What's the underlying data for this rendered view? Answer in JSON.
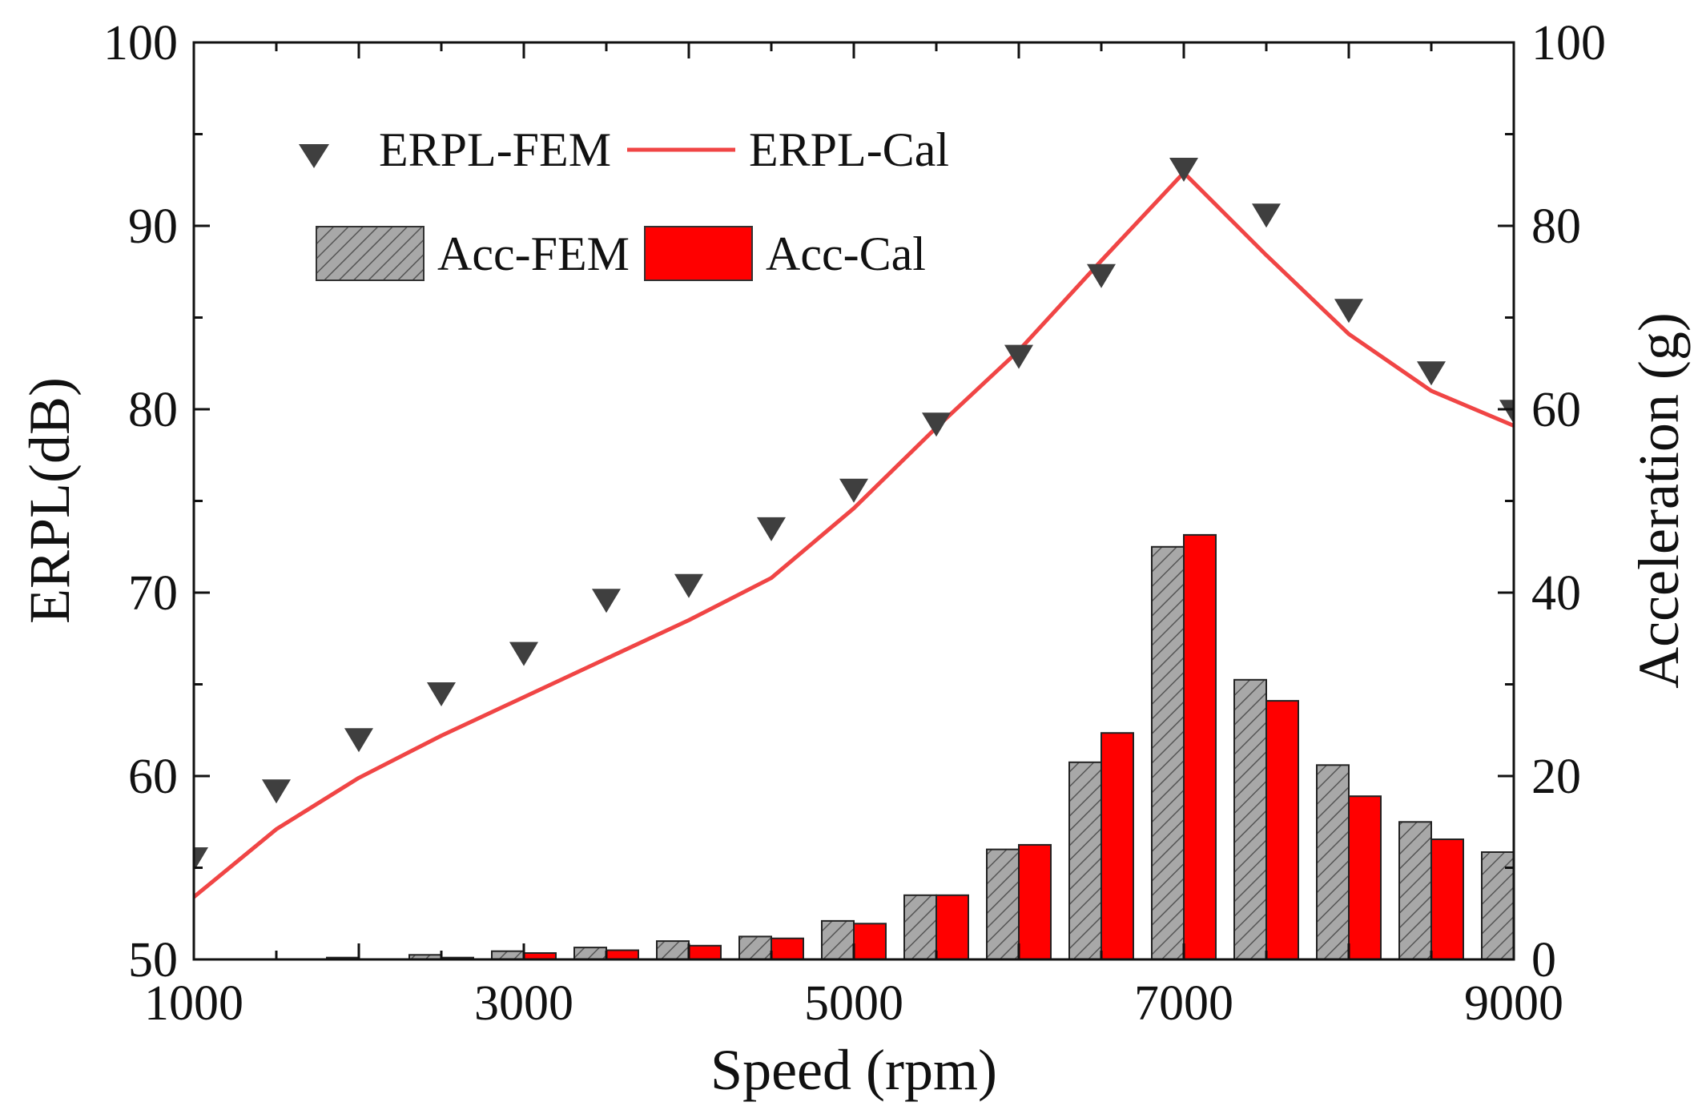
{
  "chart_data": {
    "type": "bar",
    "title": "",
    "xlabel": "Speed (rpm)",
    "ylabel_left": "ERPL(dB)",
    "ylabel_right": "Acceleration (g)",
    "xlim": [
      1000,
      9000
    ],
    "ylim_left": [
      50,
      100
    ],
    "ylim_right": [
      0,
      100
    ],
    "x_ticks": [
      1000,
      3000,
      5000,
      7000,
      9000
    ],
    "x_tick_labels": [
      "1000",
      "3000",
      "5000",
      "7000",
      "9000"
    ],
    "y_left_ticks": [
      50,
      60,
      70,
      80,
      90,
      100
    ],
    "y_left_tick_labels": [
      "50",
      "60",
      "70",
      "80",
      "90",
      "100"
    ],
    "y_right_ticks": [
      0,
      20,
      40,
      60,
      80,
      100
    ],
    "y_right_tick_labels": [
      "0",
      "20",
      "40",
      "60",
      "80",
      "100"
    ],
    "grid": false,
    "legend_position": "top-left",
    "x": [
      1000,
      1500,
      2000,
      2500,
      3000,
      3500,
      4000,
      4500,
      5000,
      5500,
      6000,
      6500,
      7000,
      7500,
      8000,
      8500,
      9000
    ],
    "series": [
      {
        "name": "ERPL-FEM",
        "kind": "scatter",
        "axis": "left",
        "color": "#3f3f3f",
        "marker": "down-triangle",
        "values": [
          55.5,
          59.2,
          62.0,
          64.5,
          66.7,
          69.6,
          70.4,
          73.5,
          75.6,
          79.2,
          82.9,
          87.3,
          93.1,
          90.6,
          85.4,
          82.0,
          79.9
        ]
      },
      {
        "name": "ERPL-Cal",
        "kind": "line",
        "axis": "left",
        "color": "#f04545",
        "values": [
          53.4,
          57.1,
          59.9,
          62.2,
          64.3,
          66.4,
          68.5,
          70.8,
          74.6,
          79.0,
          83.2,
          88.1,
          92.9,
          88.4,
          84.1,
          81.0,
          79.1
        ]
      },
      {
        "name": "Acc-FEM",
        "kind": "bar",
        "axis": "right",
        "color": "#a8a8a8",
        "pattern": "hatched",
        "values": [
          0.0,
          0.0,
          0.2,
          0.5,
          0.9,
          1.3,
          2.0,
          2.5,
          4.2,
          7.0,
          12.0,
          21.5,
          45.0,
          30.5,
          21.2,
          15.0,
          11.7
        ]
      },
      {
        "name": "Acc-Cal",
        "kind": "bar",
        "axis": "right",
        "color": "#ff0000",
        "values": [
          0.0,
          0.0,
          0.0,
          0.2,
          0.7,
          1.0,
          1.5,
          2.3,
          3.9,
          7.0,
          12.5,
          24.7,
          46.3,
          28.2,
          17.8,
          13.1,
          0.0
        ]
      }
    ]
  }
}
